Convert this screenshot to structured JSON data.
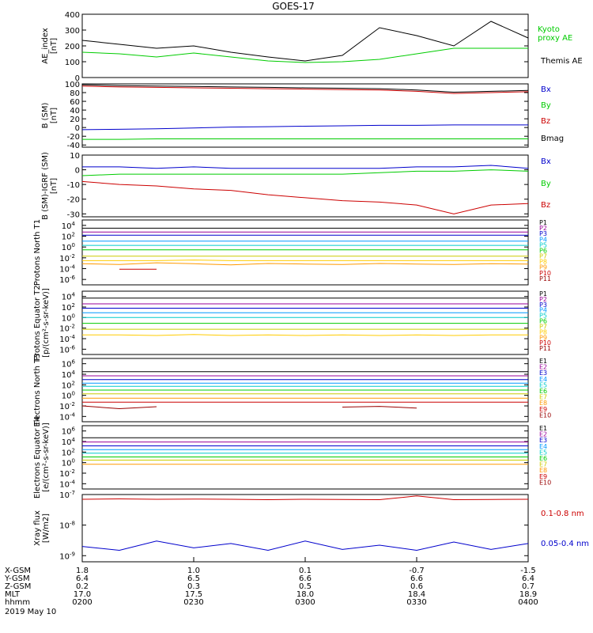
{
  "title": "GOES-17",
  "chart_data": [
    {
      "type": "line",
      "ylabel": "AE_index [nT]",
      "ylim": [
        0,
        400
      ],
      "yticks": [
        "0",
        "100",
        "200",
        "300",
        "400"
      ],
      "x": [
        "0200",
        "0210",
        "0220",
        "0230",
        "0240",
        "0250",
        "0300",
        "0310",
        "0320",
        "0330",
        "0340",
        "0350",
        "0400"
      ],
      "series": [
        {
          "name": "Kyoto proxy AE",
          "label": "Kyoto\nproxy AE",
          "color": "#00cc00",
          "values": [
            160,
            150,
            130,
            155,
            130,
            105,
            95,
            100,
            115,
            150,
            185,
            185,
            185
          ]
        },
        {
          "name": "Themis AE",
          "label": "Themis AE",
          "color": "#000000",
          "values": [
            235,
            210,
            185,
            200,
            160,
            130,
            105,
            140,
            315,
            265,
            200,
            355,
            250
          ]
        }
      ]
    },
    {
      "type": "line",
      "ylabel": "B (SM) [nT]",
      "ylim": [
        -45,
        100
      ],
      "yticks": [
        "-40",
        "-20",
        "0",
        "20",
        "40",
        "60",
        "80",
        "100"
      ],
      "series": [
        {
          "name": "Bx",
          "color": "#0000cc",
          "values": [
            -5,
            -4,
            -3,
            -1,
            1,
            2,
            3,
            4,
            5,
            5,
            6,
            6,
            6
          ]
        },
        {
          "name": "By",
          "color": "#00cc00",
          "values": [
            -27,
            -27,
            -26,
            -26,
            -26,
            -26,
            -26,
            -26,
            -26,
            -26,
            -26,
            -26,
            -26
          ]
        },
        {
          "name": "Bz",
          "color": "#cc0000",
          "values": [
            95,
            93,
            92,
            91,
            90,
            89,
            88,
            87,
            86,
            83,
            78,
            80,
            82
          ]
        },
        {
          "name": "Bmag",
          "color": "#000000",
          "values": [
            98,
            96,
            95,
            94,
            93,
            92,
            91,
            90,
            89,
            86,
            81,
            83,
            85
          ]
        }
      ]
    },
    {
      "type": "line",
      "ylabel": "B (SM)-IGRF (SM) [nT]",
      "ylim": [
        -32,
        10
      ],
      "yticks": [
        "-30",
        "-20",
        "-10",
        "0",
        "10"
      ],
      "series": [
        {
          "name": "Bx",
          "color": "#0000cc",
          "values": [
            2,
            2,
            1,
            2,
            1,
            1,
            1,
            1,
            1,
            2,
            2,
            3,
            1
          ]
        },
        {
          "name": "By",
          "color": "#00cc00",
          "values": [
            -4,
            -3,
            -3,
            -3,
            -3,
            -3,
            -3,
            -3,
            -2,
            -1,
            -1,
            0,
            -1
          ]
        },
        {
          "name": "Bz",
          "color": "#cc0000",
          "values": [
            -8,
            -10,
            -11,
            -13,
            -14,
            -17,
            -19,
            -21,
            -22,
            -24,
            -30,
            -24,
            -23
          ]
        }
      ]
    },
    {
      "type": "line",
      "ylabel": "Protons North T1",
      "log_scale": true,
      "yticks": [
        "10^4",
        "10^2",
        "10^0",
        "10^-2",
        "10^-4",
        "10^-6"
      ],
      "series": [
        {
          "name": "P1",
          "color": "#000000",
          "values": [
            3000,
            3000,
            3000,
            3000,
            3000,
            3000,
            3000,
            3000,
            3000,
            3000,
            3000,
            3000,
            3000
          ]
        },
        {
          "name": "P2",
          "color": "#990099",
          "values": [
            600,
            600,
            600,
            600,
            600,
            600,
            600,
            600,
            600,
            600,
            600,
            600,
            600
          ]
        },
        {
          "name": "P3",
          "color": "#0000cc",
          "values": [
            150,
            150,
            150,
            150,
            150,
            150,
            150,
            150,
            150,
            150,
            150,
            150,
            150
          ]
        },
        {
          "name": "P4",
          "color": "#0099ff",
          "values": [
            12,
            12,
            12,
            12,
            12,
            12,
            12,
            12,
            12,
            12,
            12,
            12,
            12
          ]
        },
        {
          "name": "P5",
          "color": "#00cccc",
          "values": [
            2,
            2,
            2,
            2,
            2,
            2,
            2,
            2,
            2,
            2,
            2,
            2,
            2
          ]
        },
        {
          "name": "P6",
          "color": "#00cc00",
          "values": [
            0.3,
            0.3,
            0.3,
            0.3,
            0.3,
            0.3,
            0.3,
            0.3,
            0.3,
            0.3,
            0.3,
            0.3,
            0.3
          ]
        },
        {
          "name": "P7",
          "color": "#cccc00",
          "values": [
            0.02,
            0.02,
            0.02,
            0.02,
            0.02,
            0.02,
            0.02,
            0.02,
            0.02,
            0.02,
            0.02,
            0.02,
            0.02
          ]
        },
        {
          "name": "P8",
          "color": "#ffcc00",
          "values": [
            0.003,
            0.003,
            0.003,
            0.004,
            0.003,
            0.003,
            0.003,
            0.003,
            0.003,
            0.003,
            0.003,
            0.003,
            0.003
          ]
        },
        {
          "name": "P9",
          "color": "#ff9900",
          "values": [
            0.0008,
            0.0006,
            0.0012,
            0.0008,
            0.0005,
            0.0009,
            0.0007,
            0.0006,
            0.0009,
            0.0007,
            0.0006,
            0.0008,
            0.0007
          ]
        },
        {
          "name": "P10",
          "color": "#cc0000",
          "values": [
            null,
            8e-05,
            8e-05,
            null,
            null,
            null,
            null,
            null,
            null,
            null,
            null,
            null,
            null
          ]
        },
        {
          "name": "P11",
          "color": "#990000",
          "values": []
        }
      ]
    },
    {
      "type": "line",
      "ylabel": "Protons Equator T2 [p/(cm²-s-sr-keV)]",
      "log_scale": true,
      "yticks": [
        "10^4",
        "10^2",
        "10^0",
        "10^-2",
        "10^-4",
        "10^-6"
      ],
      "series": [
        {
          "name": "P1",
          "color": "#000000",
          "values": [
            5000,
            5000,
            5000,
            5000,
            5000,
            5000,
            5000,
            5000,
            5000,
            5000,
            5000,
            5000,
            5000
          ]
        },
        {
          "name": "P2",
          "color": "#990099",
          "values": [
            400,
            400,
            400,
            400,
            400,
            400,
            400,
            400,
            400,
            400,
            400,
            400,
            400
          ]
        },
        {
          "name": "P3",
          "color": "#0000cc",
          "values": [
            60,
            60,
            60,
            60,
            60,
            60,
            60,
            60,
            60,
            60,
            60,
            60,
            60
          ]
        },
        {
          "name": "P4",
          "color": "#0099ff",
          "values": [
            8,
            8,
            8,
            8,
            8,
            8,
            8,
            8,
            8,
            8,
            8,
            8,
            8
          ]
        },
        {
          "name": "P5",
          "color": "#00cccc",
          "values": [
            1,
            1,
            1,
            1,
            1,
            1,
            1,
            1,
            1,
            1,
            1,
            1,
            1
          ]
        },
        {
          "name": "P6",
          "color": "#00cc00",
          "values": [
            0.08,
            0.08,
            0.08,
            0.08,
            0.08,
            0.08,
            0.08,
            0.08,
            0.08,
            0.08,
            0.08,
            0.08,
            0.08
          ]
        },
        {
          "name": "P7",
          "color": "#cccc00",
          "values": [
            0.006,
            0.006,
            0.006,
            0.006,
            0.006,
            0.006,
            0.006,
            0.006,
            0.006,
            0.006,
            0.006,
            0.006,
            0.006
          ]
        },
        {
          "name": "P8",
          "color": "#ffcc00",
          "values": [
            0.0005,
            0.0005,
            0.0004,
            0.0006,
            0.0004,
            0.0005,
            0.0004,
            0.0005,
            0.0004,
            0.0005,
            0.0004,
            0.0005,
            0.0005
          ]
        },
        {
          "name": "P9",
          "color": "#ff9900",
          "values": []
        },
        {
          "name": "P10",
          "color": "#cc0000",
          "values": []
        },
        {
          "name": "P11",
          "color": "#990000",
          "values": []
        }
      ]
    },
    {
      "type": "line",
      "ylabel": "Electrons North T3",
      "log_scale": true,
      "yticks": [
        "10^6",
        "10^4",
        "10^2",
        "10^0",
        "10^-2",
        "10^-4"
      ],
      "series": [
        {
          "name": "E1",
          "color": "#000000",
          "values": [
            30000,
            30000,
            30000,
            30000,
            30000,
            30000,
            30000,
            30000,
            30000,
            30000,
            30000,
            30000,
            30000
          ]
        },
        {
          "name": "E2",
          "color": "#990099",
          "values": [
            5000,
            5000,
            5000,
            5000,
            5000,
            5000,
            5000,
            5000,
            5000,
            5000,
            5000,
            5000,
            5000
          ]
        },
        {
          "name": "E3",
          "color": "#0000cc",
          "values": [
            1000,
            1000,
            1000,
            1000,
            1000,
            1000,
            1000,
            1000,
            1000,
            1000,
            1000,
            1000,
            1000
          ]
        },
        {
          "name": "E4",
          "color": "#0099ff",
          "values": [
            200,
            200,
            200,
            200,
            200,
            200,
            200,
            200,
            200,
            200,
            200,
            200,
            200
          ]
        },
        {
          "name": "E5",
          "color": "#00cccc",
          "values": [
            50,
            50,
            50,
            50,
            50,
            50,
            50,
            50,
            50,
            50,
            50,
            50,
            50
          ]
        },
        {
          "name": "E6",
          "color": "#00cc00",
          "values": [
            10,
            10,
            10,
            10,
            10,
            10,
            10,
            10,
            10,
            10,
            10,
            10,
            10
          ]
        },
        {
          "name": "E7",
          "color": "#cccc00",
          "values": [
            2,
            2,
            2,
            2,
            2,
            2,
            2,
            2,
            2,
            2,
            2,
            2,
            2
          ]
        },
        {
          "name": "E8",
          "color": "#ff9900",
          "values": [
            0.3,
            0.3,
            0.3,
            0.3,
            0.3,
            0.3,
            0.3,
            0.3,
            0.3,
            0.3,
            0.3,
            0.3,
            0.3
          ]
        },
        {
          "name": "E9",
          "color": "#cc0000",
          "values": [
            0.05,
            0.05,
            0.05,
            0.05,
            0.05,
            0.05,
            0.05,
            0.05,
            0.05,
            0.05,
            0.05,
            0.05,
            0.05
          ]
        },
        {
          "name": "E10",
          "color": "#990000",
          "values": [
            0.01,
            0.003,
            0.007,
            null,
            null,
            0.008,
            null,
            0.006,
            0.008,
            0.004,
            null,
            0.003,
            null
          ]
        }
      ]
    },
    {
      "type": "line",
      "ylabel": "Electrons Equator T4 [e/(cm²-s-sr-keV)]",
      "log_scale": true,
      "yticks": [
        "10^6",
        "10^4",
        "10^2",
        "10^0",
        "10^-2",
        "10^-4"
      ],
      "series": [
        {
          "name": "E1",
          "color": "#000000",
          "values": [
            50000,
            50000,
            50000,
            50000,
            50000,
            50000,
            50000,
            50000,
            50000,
            50000,
            50000,
            50000,
            50000
          ]
        },
        {
          "name": "E2",
          "color": "#990099",
          "values": [
            8000,
            8000,
            8000,
            8000,
            8000,
            8000,
            8000,
            8000,
            8000,
            8000,
            8000,
            8000,
            8000
          ]
        },
        {
          "name": "E3",
          "color": "#0000cc",
          "values": [
            1500,
            1500,
            1500,
            1500,
            1500,
            1500,
            1500,
            1500,
            1500,
            1500,
            1500,
            1500,
            1500
          ]
        },
        {
          "name": "E4",
          "color": "#0099ff",
          "values": [
            300,
            300,
            300,
            300,
            300,
            300,
            300,
            300,
            300,
            300,
            300,
            300,
            300
          ]
        },
        {
          "name": "E5",
          "color": "#00cccc",
          "values": [
            60,
            60,
            60,
            60,
            60,
            60,
            60,
            60,
            60,
            60,
            60,
            60,
            60
          ]
        },
        {
          "name": "E6",
          "color": "#00cc00",
          "values": [
            12,
            12,
            12,
            12,
            12,
            12,
            12,
            12,
            12,
            12,
            12,
            12,
            12
          ]
        },
        {
          "name": "E7",
          "color": "#cccc00",
          "values": [
            3,
            3,
            3,
            3,
            3,
            3,
            3,
            3,
            3,
            3,
            3,
            3,
            3
          ]
        },
        {
          "name": "E8",
          "color": "#ff9900",
          "values": [
            0.5,
            0.5,
            0.5,
            0.5,
            0.5,
            0.5,
            0.5,
            0.5,
            0.5,
            0.5,
            0.5,
            0.5,
            0.5
          ]
        },
        {
          "name": "E9",
          "color": "#cc0000",
          "values": [
            0.03,
            null,
            0.004,
            null,
            null,
            null,
            0.001,
            null,
            null,
            null,
            null,
            0.002,
            null
          ]
        },
        {
          "name": "E10",
          "color": "#990000",
          "values": []
        }
      ]
    },
    {
      "type": "line",
      "ylabel": "Xray flux [W/m2]",
      "log_scale": true,
      "yticks": [
        "10^-7",
        "10^-8",
        "10^-9"
      ],
      "series": [
        {
          "name": "0.1-0.8 nm",
          "color": "#cc0000",
          "values": [
            7e-08,
            7.2e-08,
            7e-08,
            7.1e-08,
            7e-08,
            6.8e-08,
            7e-08,
            6.9e-08,
            6.8e-08,
            9e-08,
            6.8e-08,
            6.9e-08,
            7e-08
          ]
        },
        {
          "name": "0.05-0.4 nm",
          "color": "#0000cc",
          "values": [
            2e-09,
            1.5e-09,
            3e-09,
            1.8e-09,
            2.5e-09,
            1.5e-09,
            3e-09,
            1.6e-09,
            2.2e-09,
            1.5e-09,
            2.8e-09,
            1.6e-09,
            2.5e-09
          ]
        }
      ]
    }
  ],
  "x_axis": {
    "rows": [
      {
        "label": "X-GSM",
        "values": [
          "1.8",
          "1.0",
          "0.1",
          "-0.7",
          "-1.5"
        ]
      },
      {
        "label": "Y-GSM",
        "values": [
          "6.4",
          "6.5",
          "6.6",
          "6.6",
          "6.4"
        ]
      },
      {
        "label": "Z-GSM",
        "values": [
          "0.2",
          "0.3",
          "0.5",
          "0.6",
          "0.7"
        ]
      },
      {
        "label": "MLT",
        "values": [
          "17.0",
          "17.5",
          "18.0",
          "18.4",
          "18.9"
        ]
      },
      {
        "label": "hhmm",
        "values": [
          "0200",
          "0230",
          "0300",
          "0330",
          "0400"
        ]
      }
    ],
    "date": "2019 May 10"
  }
}
